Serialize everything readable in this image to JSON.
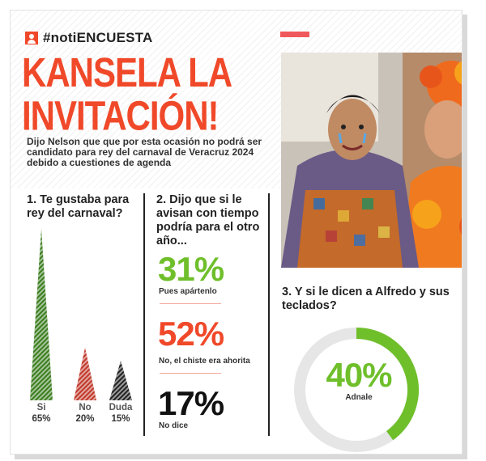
{
  "header": {
    "brand_icon": "person-icon",
    "brand": "#notiENCUESTA",
    "title_line1": "KANSELA LA",
    "title_line2": "INVITACIÓN!",
    "subtitle": "Dijo Nelson que que por esta ocasión no podrá ser candidato para rey del carnaval de Veracruz 2024 debido a cuestiones de agenda"
  },
  "colors": {
    "accent_red": "#f0492a",
    "green": "#6fbf2b",
    "black": "#222222",
    "donut_track": "#e6e6e6"
  },
  "chart_data": [
    {
      "type": "bar",
      "title": "1. Te gustaba para rey del carnaval?",
      "categories": [
        "Si",
        "No",
        "Duda"
      ],
      "values": [
        65,
        20,
        15
      ],
      "labels": [
        "65%",
        "20%",
        "15%"
      ],
      "colors": [
        "#3a7d1e",
        "#c0392b",
        "#222222"
      ]
    },
    {
      "type": "table",
      "title": "2. Dijo que si le avisan con tiempo podría para el otro año...",
      "rows": [
        {
          "value": 31,
          "label": "31%",
          "caption": "Pues apártenlo",
          "color": "#6fbf2b"
        },
        {
          "value": 52,
          "label": "52%",
          "caption": "No, el chiste era ahorita",
          "color": "#f0492a"
        },
        {
          "value": 17,
          "label": "17%",
          "caption": "No dice",
          "color": "#111111"
        }
      ]
    },
    {
      "type": "pie",
      "title": "3. Y si le dicen a Alfredo y sus teclados?",
      "values": [
        40
      ],
      "label": "40%",
      "caption": "Adnale"
    }
  ]
}
